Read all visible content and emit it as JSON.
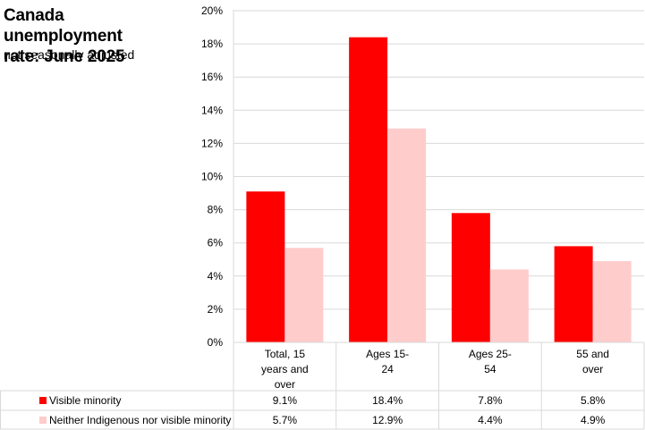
{
  "title_line1": "Canada unemployment",
  "title_line2": "rate: June 2025",
  "subtitle": "not seasonally adjusted",
  "colors": {
    "visible_minority": "#ff0000",
    "neither": "#ffcccc",
    "grid": "#d9d9d9"
  },
  "chart_data": {
    "type": "bar",
    "title": "Canada unemployment rate: June 2025",
    "subtitle": "not seasonally adjusted",
    "categories": [
      [
        "Total, 15",
        "years and",
        "over"
      ],
      [
        "Ages 15-",
        "24"
      ],
      [
        "Ages 25-",
        "54"
      ],
      [
        "55 and",
        "over"
      ]
    ],
    "series": [
      {
        "name": "Visible minority",
        "values": [
          9.1,
          18.4,
          7.8,
          5.8
        ],
        "labels": [
          "9.1%",
          "18.4%",
          "7.8%",
          "5.8%"
        ]
      },
      {
        "name": "Neither Indigenous nor visible minority",
        "values": [
          5.7,
          12.9,
          4.4,
          4.9
        ],
        "labels": [
          "5.7%",
          "12.9%",
          "4.4%",
          "4.9%"
        ]
      }
    ],
    "ylim": [
      0,
      20
    ],
    "yticks": [
      "0%",
      "2%",
      "4%",
      "6%",
      "8%",
      "10%",
      "12%",
      "14%",
      "16%",
      "18%",
      "20%"
    ],
    "legend": "data table below chart"
  }
}
